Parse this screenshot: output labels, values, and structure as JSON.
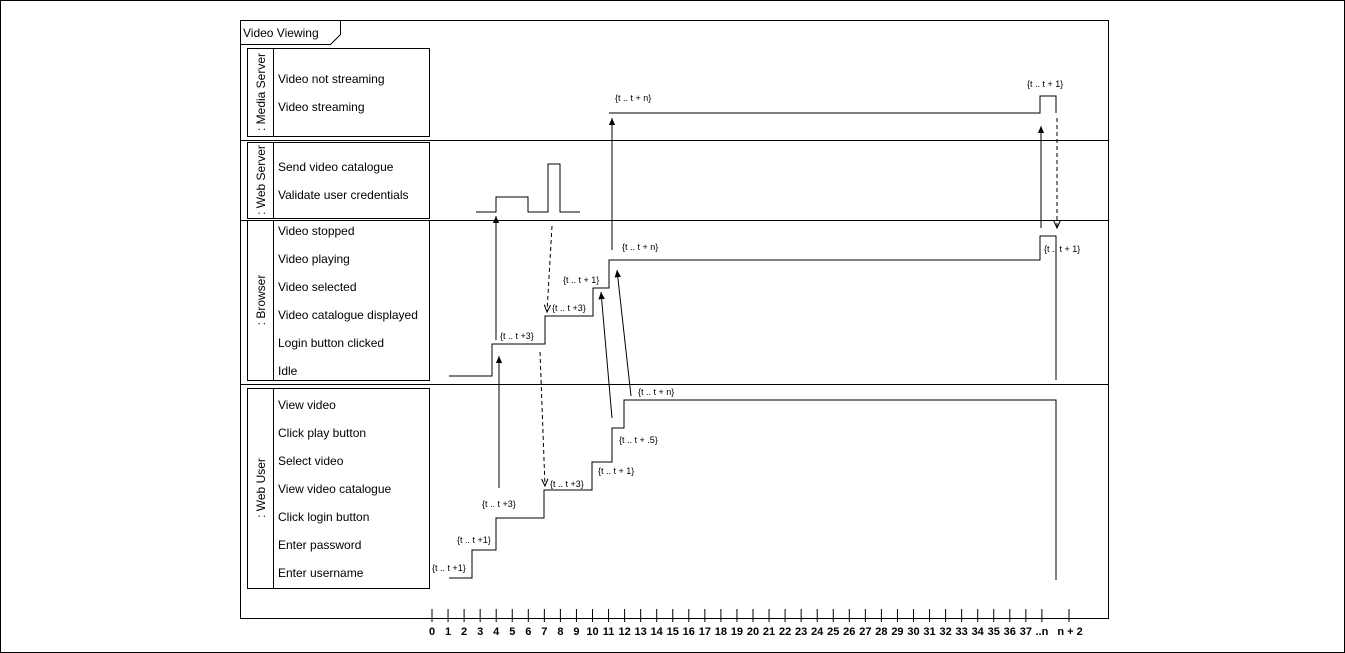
{
  "frame": {
    "title": "Video Viewing"
  },
  "lifelines": [
    {
      "name": ": Media Server",
      "states": [
        "Video not streaming",
        "Video streaming"
      ]
    },
    {
      "name": ": Web Server",
      "states": [
        "Send video catalogue",
        "Validate user credentials"
      ]
    },
    {
      "name": ": Browser",
      "states": [
        "Video stopped",
        "Video playing",
        "Video selected",
        "Video catalogue displayed",
        "Login button clicked",
        "Idle"
      ]
    },
    {
      "name": ": Web User",
      "states": [
        "View video",
        "Click play button",
        "Select video",
        "View video catalogue",
        "Click login button",
        "Enter password",
        "Enter username"
      ]
    }
  ],
  "timeline": {
    "ticks": [
      "0",
      "1",
      "2",
      "3",
      "4",
      "5",
      "6",
      "7",
      "8",
      "9",
      "10",
      "11",
      "12",
      "13",
      "14",
      "15",
      "16",
      "17",
      "18",
      "19",
      "20",
      "21",
      "22",
      "23",
      "24",
      "25",
      "26",
      "27",
      "28",
      "29",
      "30",
      "31",
      "32",
      "33",
      "34",
      "35",
      "36",
      "37",
      "..n",
      "n + 2"
    ]
  },
  "constraints": {
    "ms_a": "{t .. t + n}",
    "ms_b": "{t .. t + 1}",
    "br_a": "{t .. t +3}",
    "br_b": "{t .. t +3}",
    "br_c": "{t .. t + 1}",
    "br_d": "{t .. t + n}",
    "br_e": "{t .. t + 1}",
    "wu_a": "{t .. t +1}",
    "wu_b": "{t .. t +1}",
    "wu_c": "{t .. t +3}",
    "wu_d": "{t .. t +3}",
    "wu_e": "{t .. t + 1}",
    "wu_f": "{t .. t + .5}",
    "wu_g": "{t .. t + n}"
  }
}
